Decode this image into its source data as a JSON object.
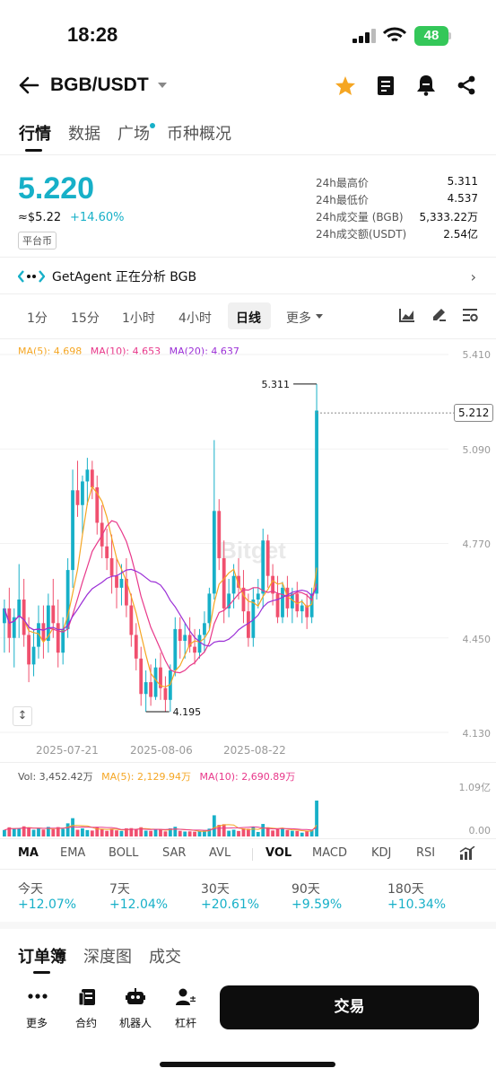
{
  "status": {
    "time": "18:28",
    "battery": "48"
  },
  "header": {
    "pair": "BGB/USDT",
    "tabs": [
      "行情",
      "数据",
      "广场",
      "币种概况"
    ]
  },
  "price": {
    "last": "5.220",
    "fiat": "≈$5.22",
    "change": "+14.60%",
    "tag": "平台币"
  },
  "stats": [
    {
      "label": "24h最高价",
      "value": "5.311"
    },
    {
      "label": "24h最低价",
      "value": "4.537"
    },
    {
      "label": "24h成交量 (BGB)",
      "value": "5,333.22万"
    },
    {
      "label": "24h成交额(USDT)",
      "value": "2.54亿"
    }
  ],
  "agent": {
    "text": "GetAgent 正在分析 BGB"
  },
  "timeframes": [
    "1分",
    "15分",
    "1小时",
    "4小时",
    "日线",
    "更多"
  ],
  "ma_legend": {
    "ma5": "MA(5): 4.698",
    "ma10": "MA(10): 4.653",
    "ma20": "MA(20): 4.637"
  },
  "axis": {
    "y_ticks": [
      "5.410",
      "5.090",
      "4.770",
      "4.450",
      "4.130"
    ],
    "x_ticks": [
      "2025-07-21",
      "2025-08-06",
      "2025-08-22"
    ],
    "current_label": "5.212",
    "high_label": "5.311",
    "low_label": "4.195",
    "watermark": "Bitget"
  },
  "volume": {
    "vol": "Vol: 3,452.42万",
    "ma5": "MA(5): 2,129.94万",
    "ma10": "MA(10): 2,690.89万",
    "y_top": "1.09亿",
    "y_bottom": "0.00"
  },
  "indicators": [
    "MA",
    "EMA",
    "BOLL",
    "SAR",
    "AVL",
    "VOL",
    "MACD",
    "KDJ",
    "RSI"
  ],
  "performance": [
    {
      "label": "今天",
      "value": "+12.07%"
    },
    {
      "label": "7天",
      "value": "+12.04%"
    },
    {
      "label": "30天",
      "value": "+20.61%"
    },
    {
      "label": "90天",
      "value": "+9.59%"
    },
    {
      "label": "180天",
      "value": "+10.34%"
    }
  ],
  "book_tabs": [
    "订单簿",
    "深度图",
    "成交"
  ],
  "bottom": {
    "items": [
      "更多",
      "合约",
      "机器人",
      "杠杆"
    ],
    "trade": "交易"
  },
  "colors": {
    "up": "#17b0c8",
    "down": "#f0506e",
    "ma5": "#f5a623",
    "ma10": "#e8388a",
    "ma20": "#9b2fd6"
  },
  "chart_data": {
    "type": "candlestick",
    "x_ticks": [
      "2025-07-21",
      "2025-08-06",
      "2025-08-22"
    ],
    "ylim": [
      4.13,
      5.41
    ],
    "y_ticks": [
      5.41,
      5.09,
      4.77,
      4.45,
      4.13
    ],
    "candles": [
      [
        4.5,
        4.58,
        4.4,
        4.55
      ],
      [
        4.55,
        4.62,
        4.4,
        4.45
      ],
      [
        4.45,
        4.55,
        4.35,
        4.52
      ],
      [
        4.52,
        4.7,
        4.45,
        4.58
      ],
      [
        4.58,
        4.65,
        4.42,
        4.46
      ],
      [
        4.46,
        4.52,
        4.3,
        4.36
      ],
      [
        4.36,
        4.48,
        4.32,
        4.42
      ],
      [
        4.42,
        4.56,
        4.38,
        4.5
      ],
      [
        4.5,
        4.56,
        4.38,
        4.44
      ],
      [
        4.44,
        4.6,
        4.4,
        4.56
      ],
      [
        4.56,
        4.65,
        4.45,
        4.5
      ],
      [
        4.5,
        4.58,
        4.35,
        4.4
      ],
      [
        4.4,
        4.52,
        4.36,
        4.48
      ],
      [
        4.48,
        4.72,
        4.45,
        4.68
      ],
      [
        4.68,
        5.02,
        4.62,
        4.95
      ],
      [
        4.95,
        5.05,
        4.86,
        4.9
      ],
      [
        4.9,
        5.0,
        4.8,
        4.98
      ],
      [
        4.98,
        5.06,
        4.9,
        5.02
      ],
      [
        5.02,
        5.05,
        4.92,
        4.96
      ],
      [
        4.96,
        5.0,
        4.8,
        4.84
      ],
      [
        4.84,
        4.9,
        4.72,
        4.76
      ],
      [
        4.76,
        4.82,
        4.68,
        4.72
      ],
      [
        4.72,
        4.8,
        4.6,
        4.66
      ],
      [
        4.66,
        4.72,
        4.55,
        4.62
      ],
      [
        4.62,
        4.7,
        4.56,
        4.65
      ],
      [
        4.65,
        4.72,
        4.52,
        4.56
      ],
      [
        4.56,
        4.6,
        4.42,
        4.46
      ],
      [
        4.46,
        4.5,
        4.34,
        4.38
      ],
      [
        4.38,
        4.42,
        4.22,
        4.26
      ],
      [
        4.26,
        4.34,
        4.2,
        4.3
      ],
      [
        4.3,
        4.36,
        4.22,
        4.25
      ],
      [
        4.25,
        4.38,
        4.24,
        4.35
      ],
      [
        4.35,
        4.4,
        4.24,
        4.28
      ],
      [
        4.28,
        4.32,
        4.2,
        4.24
      ],
      [
        4.24,
        4.36,
        4.2,
        4.34
      ],
      [
        4.34,
        4.52,
        4.32,
        4.48
      ],
      [
        4.48,
        4.52,
        4.38,
        4.44
      ],
      [
        4.44,
        4.5,
        4.38,
        4.46
      ],
      [
        4.46,
        4.52,
        4.4,
        4.42
      ],
      [
        4.42,
        4.48,
        4.36,
        4.4
      ],
      [
        4.4,
        4.48,
        4.38,
        4.46
      ],
      [
        4.46,
        4.54,
        4.4,
        4.5
      ],
      [
        4.5,
        4.62,
        4.48,
        4.6
      ],
      [
        4.6,
        5.12,
        4.58,
        4.88
      ],
      [
        4.88,
        4.92,
        4.68,
        4.72
      ],
      [
        4.72,
        4.78,
        4.5,
        4.55
      ],
      [
        4.55,
        4.65,
        4.52,
        4.6
      ],
      [
        4.6,
        4.7,
        4.55,
        4.66
      ],
      [
        4.66,
        4.72,
        4.58,
        4.62
      ],
      [
        4.62,
        4.68,
        4.5,
        4.54
      ],
      [
        4.54,
        4.6,
        4.42,
        4.45
      ],
      [
        4.45,
        4.62,
        4.42,
        4.58
      ],
      [
        4.58,
        4.65,
        4.55,
        4.6
      ],
      [
        4.6,
        4.82,
        4.55,
        4.78
      ],
      [
        4.78,
        4.8,
        4.62,
        4.66
      ],
      [
        4.66,
        4.7,
        4.56,
        4.6
      ],
      [
        4.6,
        4.66,
        4.5,
        4.52
      ],
      [
        4.52,
        4.64,
        4.5,
        4.62
      ],
      [
        4.62,
        4.66,
        4.52,
        4.55
      ],
      [
        4.55,
        4.62,
        4.5,
        4.6
      ],
      [
        4.6,
        4.64,
        4.52,
        4.54
      ],
      [
        4.54,
        4.58,
        4.5,
        4.56
      ],
      [
        4.56,
        4.6,
        4.48,
        4.52
      ],
      [
        4.52,
        4.62,
        4.5,
        4.6
      ],
      [
        4.6,
        5.31,
        4.58,
        5.22
      ]
    ],
    "volume_max": 1.09,
    "volume_unit": "亿"
  }
}
